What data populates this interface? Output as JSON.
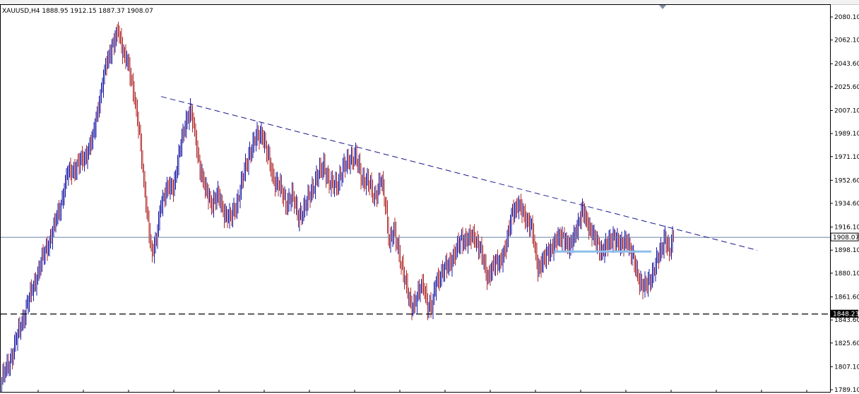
{
  "header": {
    "symbol_line": "XAUUSD,H4  1888.95 1912.15 1887.37 1908.07"
  },
  "colors": {
    "bull": "#1a1aa6",
    "bear": "#b02a2a",
    "trendline": "#1a1a8c",
    "support": "#000000",
    "current_price_line": "#6b7fa8",
    "box_line": "#8fbfea"
  },
  "chart_data": {
    "type": "candlestick",
    "title": "XAUUSD,H4",
    "ohlc_header": {
      "open": 1888.95,
      "high": 1912.15,
      "low": 1887.37,
      "close": 1908.07
    },
    "ylim": [
      1789.1,
      2090.0
    ],
    "y_ticks": [
      {
        "value": 2080.1,
        "label": "2080.10"
      },
      {
        "value": 2062.1,
        "label": "2062.10"
      },
      {
        "value": 2043.6,
        "label": "2043.60"
      },
      {
        "value": 2025.6,
        "label": "2025.60"
      },
      {
        "value": 2007.1,
        "label": "2007.10"
      },
      {
        "value": 1989.1,
        "label": "1989.10"
      },
      {
        "value": 1971.1,
        "label": "1971.10"
      },
      {
        "value": 1952.6,
        "label": "1952.60"
      },
      {
        "value": 1934.6,
        "label": "1934.60"
      },
      {
        "value": 1916.1,
        "label": "1916.10"
      },
      {
        "value": 1898.1,
        "label": "1898.10"
      },
      {
        "value": 1880.1,
        "label": "1880.10"
      },
      {
        "value": 1861.6,
        "label": "1861.60"
      },
      {
        "value": 1843.6,
        "label": "1843.60"
      },
      {
        "value": 1825.6,
        "label": "1825.60"
      },
      {
        "value": 1807.1,
        "label": "1807.10"
      },
      {
        "value": 1789.1,
        "label": "1789.10"
      }
    ],
    "current_price": {
      "value": 1908.07,
      "label": "1908.07"
    },
    "support_level": {
      "value": 1848.23,
      "label": "1848.23"
    },
    "trendline": {
      "start": {
        "bar": 0,
        "price": 2018
      },
      "end": {
        "bar": 1,
        "price": 1898
      }
    },
    "box_line": {
      "price": 1897
    },
    "close_path": [
      [
        0,
        1797
      ],
      [
        8,
        1812
      ],
      [
        16,
        1834
      ],
      [
        24,
        1855
      ],
      [
        32,
        1875
      ],
      [
        40,
        1895
      ],
      [
        48,
        1912
      ],
      [
        56,
        1935
      ],
      [
        62,
        1957
      ],
      [
        70,
        1963
      ],
      [
        78,
        1970
      ],
      [
        86,
        1985
      ],
      [
        92,
        2015
      ],
      [
        98,
        2040
      ],
      [
        104,
        2058
      ],
      [
        110,
        2068
      ],
      [
        114,
        2055
      ],
      [
        118,
        2048
      ],
      [
        122,
        2030
      ],
      [
        126,
        2015
      ],
      [
        130,
        1990
      ],
      [
        134,
        1950
      ],
      [
        138,
        1922
      ],
      [
        142,
        1895
      ],
      [
        146,
        1905
      ],
      [
        150,
        1935
      ],
      [
        156,
        1945
      ],
      [
        162,
        1948
      ],
      [
        168,
        1975
      ],
      [
        174,
        2000
      ],
      [
        178,
        2007
      ],
      [
        182,
        1990
      ],
      [
        186,
        1968
      ],
      [
        192,
        1945
      ],
      [
        198,
        1935
      ],
      [
        204,
        1940
      ],
      [
        210,
        1928
      ],
      [
        216,
        1922
      ],
      [
        222,
        1935
      ],
      [
        228,
        1955
      ],
      [
        234,
        1975
      ],
      [
        240,
        1985
      ],
      [
        246,
        1990
      ],
      [
        250,
        1975
      ],
      [
        256,
        1955
      ],
      [
        262,
        1948
      ],
      [
        268,
        1935
      ],
      [
        274,
        1940
      ],
      [
        280,
        1925
      ],
      [
        286,
        1930
      ],
      [
        292,
        1945
      ],
      [
        298,
        1955
      ],
      [
        304,
        1965
      ],
      [
        310,
        1948
      ],
      [
        316,
        1950
      ],
      [
        322,
        1960
      ],
      [
        328,
        1970
      ],
      [
        334,
        1970
      ],
      [
        340,
        1955
      ],
      [
        346,
        1950
      ],
      [
        352,
        1940
      ],
      [
        358,
        1952
      ],
      [
        362,
        1935
      ],
      [
        366,
        1905
      ],
      [
        370,
        1912
      ],
      [
        374,
        1900
      ],
      [
        378,
        1885
      ],
      [
        382,
        1868
      ],
      [
        386,
        1855
      ],
      [
        390,
        1858
      ],
      [
        394,
        1865
      ],
      [
        398,
        1872
      ],
      [
        402,
        1855
      ],
      [
        406,
        1852
      ],
      [
        410,
        1875
      ],
      [
        416,
        1880
      ],
      [
        422,
        1888
      ],
      [
        428,
        1895
      ],
      [
        434,
        1908
      ],
      [
        440,
        1905
      ],
      [
        446,
        1910
      ],
      [
        452,
        1897
      ],
      [
        458,
        1878
      ],
      [
        464,
        1885
      ],
      [
        470,
        1890
      ],
      [
        476,
        1900
      ],
      [
        482,
        1930
      ],
      [
        488,
        1932
      ],
      [
        494,
        1925
      ],
      [
        500,
        1915
      ],
      [
        506,
        1885
      ],
      [
        512,
        1890
      ],
      [
        518,
        1900
      ],
      [
        524,
        1905
      ],
      [
        530,
        1910
      ],
      [
        536,
        1898
      ],
      [
        542,
        1915
      ],
      [
        548,
        1928
      ],
      [
        554,
        1918
      ],
      [
        560,
        1905
      ],
      [
        566,
        1898
      ],
      [
        572,
        1902
      ],
      [
        578,
        1910
      ],
      [
        584,
        1900
      ],
      [
        590,
        1908
      ],
      [
        594,
        1895
      ],
      [
        598,
        1885
      ],
      [
        602,
        1875
      ],
      [
        606,
        1868
      ],
      [
        610,
        1872
      ],
      [
        614,
        1880
      ],
      [
        618,
        1888
      ],
      [
        622,
        1897
      ],
      [
        626,
        1910
      ],
      [
        630,
        1895
      ],
      [
        634,
        1908
      ]
    ]
  }
}
